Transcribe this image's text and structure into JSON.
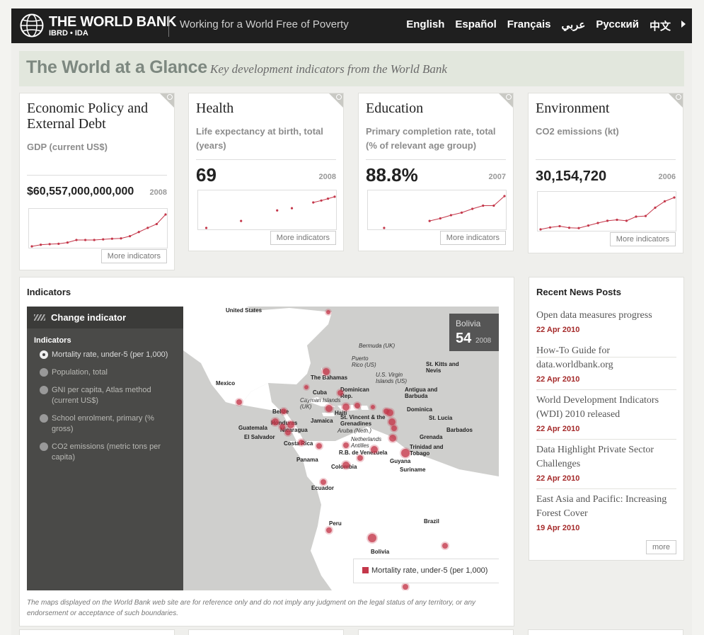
{
  "header": {
    "logo_text": "THE WORLD BANK",
    "logo_sub": "IBRD • IDA",
    "tagline": "Working for a World Free of Poverty",
    "languages": [
      "English",
      "Español",
      "Français",
      "عربي",
      "Русский",
      "中文"
    ]
  },
  "banner": {
    "title": "The World at a Glance",
    "subtitle": "Key development indicators from the World Bank"
  },
  "cards": [
    {
      "title": "Economic Policy and External Debt",
      "indicator": "GDP (current US$)",
      "value": "$60,557,000,000,000",
      "year": "2008",
      "more": "More indicators",
      "spark": [
        0.0,
        0.05,
        0.07,
        0.08,
        0.12,
        0.2,
        0.2,
        0.2,
        0.22,
        0.24,
        0.25,
        0.32,
        0.45,
        0.58,
        0.7,
        1.0
      ]
    },
    {
      "title": "Health",
      "indicator": "Life expectancy at birth, total (years)",
      "value": "69",
      "year": "2008",
      "more": "More indicators",
      "spark_points": [
        [
          0.04,
          0.0
        ],
        [
          0.3,
          0.22
        ],
        [
          0.57,
          0.55
        ],
        [
          0.68,
          0.62
        ],
        [
          0.84,
          0.8
        ],
        [
          0.9,
          0.86
        ],
        [
          0.95,
          0.92
        ],
        [
          1.0,
          0.98
        ]
      ]
    },
    {
      "title": "Education",
      "indicator": "Primary completion rate, total (% of relevant age group)",
      "value": "88.8%",
      "year": "2007",
      "more": "More indicators",
      "spark_points": [
        [
          0.1,
          0.0
        ],
        [
          0.44,
          0.22
        ],
        [
          0.52,
          0.3
        ],
        [
          0.6,
          0.4
        ],
        [
          0.68,
          0.48
        ],
        [
          0.76,
          0.6
        ],
        [
          0.84,
          0.7
        ],
        [
          0.92,
          0.7
        ],
        [
          1.0,
          1.0
        ]
      ]
    },
    {
      "title": "Environment",
      "indicator": "CO2 emissions (kt)",
      "value": "30,154,720",
      "year": "2006",
      "more": "More indicators",
      "spark": [
        0.0,
        0.06,
        0.1,
        0.05,
        0.04,
        0.12,
        0.2,
        0.27,
        0.3,
        0.27,
        0.4,
        0.42,
        0.68,
        0.88,
        1.0
      ]
    }
  ],
  "indicators": {
    "title": "Indicators",
    "change_label": "Change indicator",
    "list_label": "Indicators",
    "items": [
      "Mortality rate, under-5 (per 1,000)",
      "Population, total",
      "GNI per capita, Atlas method (current US$)",
      "School enrolment, primary (% gross)",
      "CO2 emissions (metric tons per capita)"
    ],
    "selected_index": 0,
    "infobox": {
      "country": "Bolivia",
      "value": "54",
      "year": "2008"
    },
    "legend": "Mortality rate, under-5 (per 1,000)",
    "disclaimer": "The maps displayed on the World Bank web site are for reference only and do not imply any judgment on the legal status of any territory, or any endorsement or acceptance of such boundaries.",
    "map_labels": [
      "United States",
      "Mexico",
      "The Bahamas",
      "Cuba",
      "Cayman Islands (UK)",
      "Haiti",
      "Dominican Rep.",
      "Puerto Rico (US)",
      "U.S. Virgin Islands (US)",
      "Bermuda (UK)",
      "St. Kitts and Nevis",
      "Antigua and Barbuda",
      "Dominica",
      "St. Lucia",
      "Barbados",
      "St. Vincent & the Grenadines",
      "Grenada",
      "Trinidad and Tobago",
      "Aruba (Neth.)",
      "Netherlands Antilles",
      "Belize",
      "Honduras",
      "Guatemala",
      "El Salvador",
      "Nicaragua",
      "Jamaica",
      "Costa Rica",
      "Panama",
      "R.B. de Venezuela",
      "Guyana",
      "Suriname",
      "Colombia",
      "Ecuador",
      "Peru",
      "Bolivia",
      "Brazil"
    ]
  },
  "news": {
    "title": "Recent News Posts",
    "items": [
      {
        "title": "Open data measures progress",
        "date": "22 Apr 2010"
      },
      {
        "title": "How-To Guide for data.worldbank.org",
        "date": "22 Apr 2010"
      },
      {
        "title": "World Development Indicators (WDI) 2010 released",
        "date": "22 Apr 2010"
      },
      {
        "title": "Data Highlight Private Sector Challenges",
        "date": "22 Apr 2010"
      },
      {
        "title": "East Asia and Pacific: Increasing Forest Cover",
        "date": "19 Apr 2010"
      }
    ],
    "more": "more"
  },
  "colors": {
    "accent_red": "#c4374a",
    "date_red": "#a52a2a",
    "dark_bar": "#1f1f1f"
  }
}
